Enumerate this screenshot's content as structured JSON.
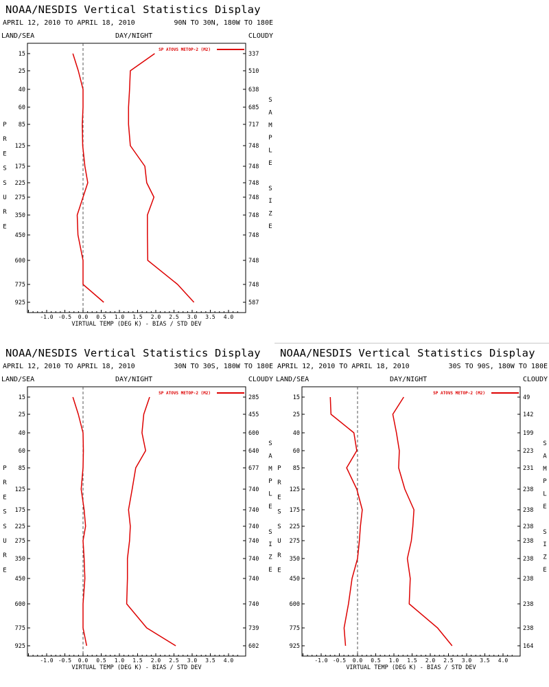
{
  "colors": {
    "line": "#dd0000",
    "axis": "#000000",
    "zero_line": "#555555",
    "divider": "#c8c8c8",
    "background": "#ffffff"
  },
  "header_labels": {
    "land_sea": "LAND/SEA",
    "day_night": "DAY/NIGHT",
    "cloudy": "CLOUDY"
  },
  "chart_data": [
    {
      "type": "line",
      "title": "NOAA/NESDIS Vertical Statistics Display",
      "date_range": "APRIL 12, 2010 TO APRIL 18, 2010",
      "region": "90N TO 30N, 180W TO 180E",
      "legend": "SP ATOVS METOP-2 (M2)",
      "xlabel": "VIRTUAL TEMP (DEG K) - BIAS / STD DEV",
      "left_axis_label": "PRESSURE",
      "right_axis_label": "SAMPLE SIZE",
      "xlim": [
        -1.5,
        4.25
      ],
      "x_ticks": [
        "-1.0",
        "-0.5",
        "0.0",
        "0.5",
        "1.0",
        "1.5",
        "2.0",
        "2.5",
        "3.0",
        "3.5",
        "4.0"
      ],
      "pressure_levels": [
        "15",
        "25",
        "40",
        "60",
        "85",
        "125",
        "175",
        "225",
        "275",
        "350",
        "450",
        "600",
        "775",
        "925"
      ],
      "sample_sizes": [
        "337",
        "510",
        "638",
        "685",
        "717",
        "748",
        "748",
        "748",
        "748",
        "748",
        "748",
        "748",
        "748",
        "587"
      ],
      "series": [
        {
          "name": "bias",
          "values": [
            -0.28,
            -0.13,
            0.0,
            0.0,
            -0.02,
            -0.01,
            0.05,
            0.13,
            0.0,
            -0.16,
            -0.14,
            0.0,
            0.0,
            0.57
          ]
        },
        {
          "name": "std dev",
          "values": [
            1.97,
            1.3,
            1.28,
            1.25,
            1.25,
            1.3,
            1.7,
            1.75,
            1.95,
            1.77,
            1.77,
            1.78,
            2.6,
            3.05
          ]
        }
      ]
    },
    {
      "type": "line",
      "title": "NOAA/NESDIS Vertical Statistics Display",
      "date_range": "APRIL 12, 2010 TO APRIL 18, 2010",
      "region": "30N TO 30S, 180W TO 180E",
      "legend": "SP ATOVS METOP-2 (M2)",
      "xlabel": "VIRTUAL TEMP (DEG K) - BIAS / STD DEV",
      "left_axis_label": "PRESSURE",
      "right_axis_label": "SAMPLE SIZE",
      "xlim": [
        -1.5,
        4.25
      ],
      "x_ticks": [
        "-1.0",
        "-0.5",
        "0.0",
        "0.5",
        "1.0",
        "1.5",
        "2.0",
        "2.5",
        "3.0",
        "3.5",
        "4.0"
      ],
      "pressure_levels": [
        "15",
        "25",
        "40",
        "60",
        "85",
        "125",
        "175",
        "225",
        "275",
        "350",
        "450",
        "600",
        "775",
        "925"
      ],
      "sample_sizes": [
        "285",
        "455",
        "600",
        "640",
        "677",
        "740",
        "740",
        "740",
        "740",
        "740",
        "740",
        "740",
        "739",
        "602"
      ],
      "series": [
        {
          "name": "bias",
          "values": [
            -0.28,
            -0.13,
            0.0,
            0.01,
            0.0,
            -0.05,
            0.03,
            0.07,
            0.0,
            0.03,
            0.05,
            0.0,
            0.0,
            0.1
          ]
        },
        {
          "name": "std dev",
          "values": [
            1.83,
            1.67,
            1.62,
            1.72,
            1.45,
            1.35,
            1.25,
            1.3,
            1.28,
            1.22,
            1.22,
            1.2,
            1.75,
            2.55
          ]
        }
      ]
    },
    {
      "type": "line",
      "title": "NOAA/NESDIS Vertical Statistics Display",
      "date_range": "APRIL 12, 2010 TO APRIL 18, 2010",
      "region": "30S TO 90S, 180W TO 180E",
      "legend": "SP ATOVS METOP-2 (M2)",
      "xlabel": "VIRTUAL TEMP (DEG K) - BIAS / STD DEV",
      "left_axis_label": "PRESSURE",
      "right_axis_label": "SAMPLE SIZE",
      "xlim": [
        -1.5,
        4.25
      ],
      "x_ticks": [
        "-1.0",
        "-0.5",
        "0.0",
        "0.5",
        "1.0",
        "1.5",
        "2.0",
        "2.5",
        "3.0",
        "3.5",
        "4.0"
      ],
      "pressure_levels": [
        "15",
        "25",
        "40",
        "60",
        "85",
        "125",
        "175",
        "225",
        "275",
        "350",
        "450",
        "600",
        "775",
        "925"
      ],
      "sample_sizes": [
        "49",
        "142",
        "199",
        "223",
        "231",
        "238",
        "238",
        "238",
        "238",
        "238",
        "238",
        "238",
        "238",
        "164"
      ],
      "series": [
        {
          "name": "bias",
          "values": [
            -0.75,
            -0.73,
            -0.1,
            -0.02,
            -0.3,
            -0.02,
            0.13,
            0.08,
            0.05,
            0.0,
            -0.15,
            -0.25,
            -0.37,
            -0.33
          ]
        },
        {
          "name": "std dev",
          "values": [
            1.27,
            0.97,
            1.07,
            1.15,
            1.13,
            1.3,
            1.55,
            1.52,
            1.48,
            1.37,
            1.45,
            1.42,
            2.2,
            2.6
          ]
        }
      ]
    }
  ]
}
